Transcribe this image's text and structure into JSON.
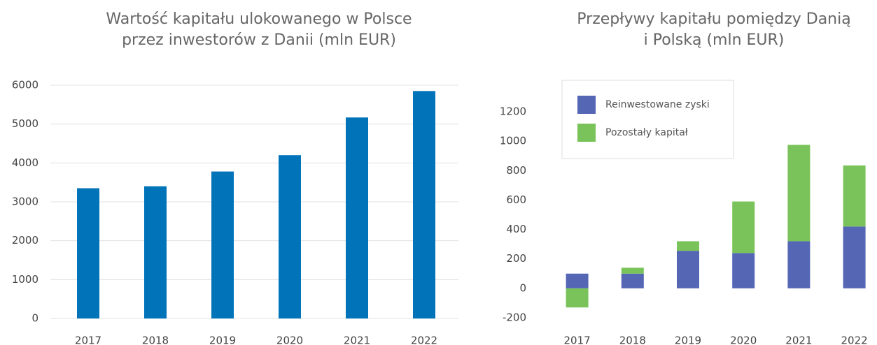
{
  "chart_data": [
    {
      "type": "bar",
      "title": [
        "Wartość kapitału ulokowanego w Polsce",
        "przez inwestorów z Danii (mln EUR)"
      ],
      "categories": [
        "2017",
        "2018",
        "2019",
        "2020",
        "2021",
        "2022"
      ],
      "values": [
        3350,
        3400,
        3780,
        4200,
        5170,
        5850
      ],
      "color": "#0073b9",
      "ylim": [
        0,
        6000
      ],
      "yticks": [
        0,
        1000,
        2000,
        3000,
        4000,
        5000,
        6000
      ],
      "grid": true
    },
    {
      "type": "stacked_bar",
      "title": [
        "Przepływy kapitału pomiędzy Danią",
        "i Polską (mln EUR)"
      ],
      "categories": [
        "2017",
        "2018",
        "2019",
        "2020",
        "2021",
        "2022"
      ],
      "series": [
        {
          "name": "Reinwestowane zyski",
          "color": "#5566b5",
          "values": [
            100,
            100,
            255,
            240,
            320,
            420
          ]
        },
        {
          "name": "Pozostały kapitał",
          "color": "#7ac35a",
          "values": [
            -130,
            40,
            65,
            350,
            655,
            415
          ]
        }
      ],
      "ylim": [
        -200,
        1200
      ],
      "yticks": [
        -200,
        0,
        200,
        400,
        600,
        800,
        1000,
        1200
      ],
      "grid": false,
      "legend": "upper left"
    }
  ]
}
